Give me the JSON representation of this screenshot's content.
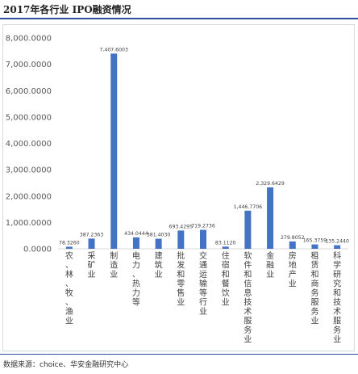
{
  "chart_data": {
    "type": "bar",
    "title": "2017年各行业 IPO融资情况",
    "categories": [
      "农、林、牧、渔业",
      "采矿业",
      "制造业",
      "电力、热力等",
      "建筑业",
      "批发和零售业",
      "交通运输等行业",
      "住宿和餐饮业",
      "软件和信息技术服务业",
      "金融业",
      "房地产业",
      "租赁和商务服务业",
      "科学研究和技术服务业"
    ],
    "values": [
      78.326,
      387.2363,
      7407.6003,
      434.0444,
      381.403,
      693.4295,
      719.2736,
      83.112,
      1446.7706,
      2329.6429,
      279.8052,
      165.3759,
      135.244
    ],
    "value_labels": [
      "78.3260",
      "387.2363",
      "7,407.6003",
      "434.0444",
      "381.4030",
      "693.4295",
      "719.2736",
      "83.1120",
      "1,446.7706",
      "2,329.6429",
      "279.8052",
      "165.3759",
      "135.2440"
    ],
    "ylim": [
      0,
      8000
    ],
    "yticks": [
      0,
      1000,
      2000,
      3000,
      4000,
      5000,
      6000,
      7000,
      8000
    ],
    "ytick_labels": [
      "0.0000",
      "1,000.0000",
      "2,000.0000",
      "3,000.0000",
      "4,000.0000",
      "5,000.0000",
      "6,000.0000",
      "7,000.0000",
      "8,000.0000"
    ],
    "bar_color": "#4472c4",
    "grid": false,
    "legend": "none"
  },
  "source": "数据来源：choice、华安金融研究中心"
}
